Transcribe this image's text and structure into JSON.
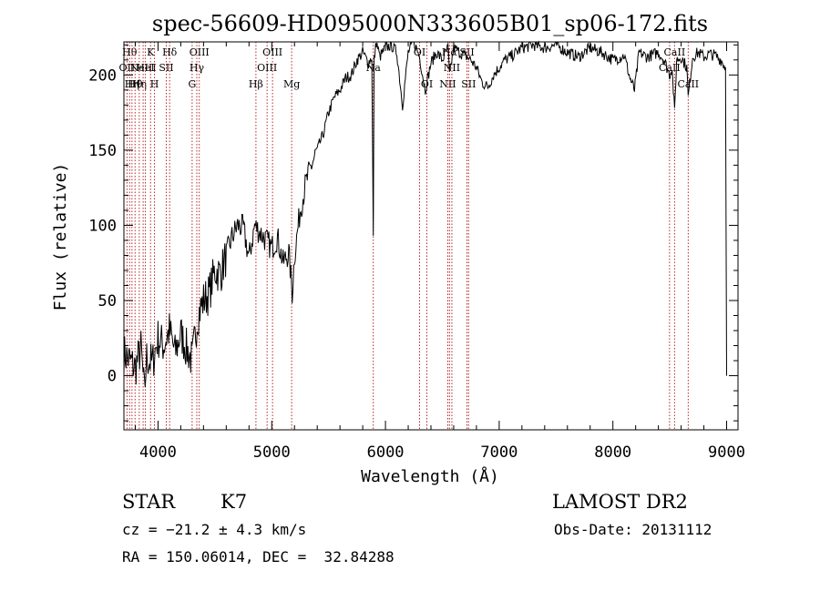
{
  "chart_data": {
    "type": "line",
    "title": "spec-56609-HD095000N333605B01_sp06-172.fits",
    "xlabel": "Wavelength (Å)",
    "ylabel": "Flux (relative)",
    "xlim": [
      3700,
      9100
    ],
    "ylim": [
      -36,
      222
    ],
    "x_ticks": [
      4000,
      5000,
      6000,
      7000,
      8000,
      9000
    ],
    "y_ticks": [
      0,
      50,
      100,
      150,
      200
    ],
    "series": [
      {
        "x": [
          3700,
          3750,
          3800,
          3850,
          3880,
          3900,
          3950,
          4000,
          4050,
          4100,
          4150,
          4200,
          4250,
          4300,
          4350,
          4400,
          4450,
          4500,
          4550,
          4600,
          4650,
          4700,
          4750,
          4800,
          4850,
          4900,
          4950,
          5000,
          5050,
          5100,
          5150,
          5180,
          5200,
          5250,
          5300,
          5350,
          5400,
          5450,
          5500,
          5550,
          5600,
          5650,
          5700,
          5750,
          5800,
          5850,
          5880,
          5893,
          5900,
          5920,
          5950,
          6000,
          6050,
          6100,
          6150,
          6200,
          6250,
          6300,
          6350,
          6400,
          6450,
          6500,
          6550,
          6563,
          6600,
          6650,
          6700,
          6750,
          6800,
          6850,
          6900,
          6950,
          7000,
          7050,
          7100,
          7150,
          7200,
          7300,
          7400,
          7500,
          7600,
          7700,
          7800,
          7900,
          8000,
          8100,
          8150,
          8190,
          8230,
          8300,
          8400,
          8450,
          8498,
          8520,
          8542,
          8560,
          8600,
          8650,
          8662,
          8700,
          8750,
          8800,
          8850,
          8900,
          8950,
          8990,
          9000
        ],
        "y": [
          15,
          10,
          5,
          18,
          -12,
          12,
          8,
          25,
          20,
          30,
          15,
          28,
          18,
          10,
          40,
          50,
          55,
          70,
          68,
          80,
          92,
          100,
          98,
          78,
          100,
          95,
          90,
          85,
          92,
          75,
          82,
          55,
          80,
          110,
          128,
          140,
          150,
          160,
          175,
          185,
          190,
          198,
          200,
          210,
          215,
          208,
          212,
          92,
          210,
          222,
          212,
          218,
          220,
          215,
          180,
          215,
          222,
          212,
          190,
          208,
          215,
          210,
          218,
          200,
          218,
          215,
          213,
          210,
          205,
          195,
          192,
          200,
          205,
          210,
          212,
          215,
          218,
          220,
          218,
          220,
          215,
          212,
          218,
          215,
          210,
          213,
          198,
          190,
          215,
          212,
          215,
          210,
          200,
          205,
          175,
          210,
          212,
          205,
          185,
          212,
          215,
          212,
          214,
          213,
          210,
          205,
          0
        ]
      }
    ],
    "lines": [
      {
        "x": 3727,
        "label": "OII",
        "row": 2
      },
      {
        "x": 3750,
        "label": "Hθ",
        "row": 1
      },
      {
        "x": 3771,
        "label": "Hη",
        "row": 3
      },
      {
        "x": 3798,
        "label": "Hθ",
        "row": 3
      },
      {
        "x": 3835,
        "label": "Hη",
        "row": 3
      },
      {
        "x": 3869,
        "label": "NeIII",
        "row": 2
      },
      {
        "x": 3889,
        "label": "HeI",
        "row": 2
      },
      {
        "x": 3934,
        "label": "K",
        "row": 1
      },
      {
        "x": 3969,
        "label": "H",
        "row": 3
      },
      {
        "x": 4072,
        "label": "SII",
        "row": 2
      },
      {
        "x": 4102,
        "label": "Hδ",
        "row": 1
      },
      {
        "x": 4300,
        "label": "G",
        "row": 3
      },
      {
        "x": 4341,
        "label": "Hγ",
        "row": 2
      },
      {
        "x": 4363,
        "label": "OIII",
        "row": 1
      },
      {
        "x": 4861,
        "label": "Hβ",
        "row": 3
      },
      {
        "x": 4959,
        "label": "OIII",
        "row": 2
      },
      {
        "x": 5007,
        "label": "OIII",
        "row": 1
      },
      {
        "x": 5175,
        "label": "Mg",
        "row": 3
      },
      {
        "x": 5893,
        "label": "Na",
        "row": 2
      },
      {
        "x": 6300,
        "label": "OI",
        "row": 1
      },
      {
        "x": 6364,
        "label": "OI",
        "row": 3
      },
      {
        "x": 6548,
        "label": "NII",
        "row": 3
      },
      {
        "x": 6563,
        "label": "Hα",
        "row": 1
      },
      {
        "x": 6584,
        "label": "NII",
        "row": 2
      },
      {
        "x": 6717,
        "label": "SII",
        "row": 1
      },
      {
        "x": 6731,
        "label": "SII",
        "row": 3
      },
      {
        "x": 8498,
        "label": "CaII",
        "row": 2
      },
      {
        "x": 8542,
        "label": "CaII",
        "row": 1
      },
      {
        "x": 8662,
        "label": "CaII",
        "row": 3
      }
    ],
    "grid": false,
    "legend": "none"
  },
  "info": {
    "class_label": "STAR",
    "subclass_label": "K7",
    "survey": "LAMOST DR2",
    "cz": "cz = −21.2 ± 4.3 km/s",
    "obs_date": "Obs-Date: 20131112",
    "coords": "RA = 150.06014, DEC =  32.84288"
  }
}
